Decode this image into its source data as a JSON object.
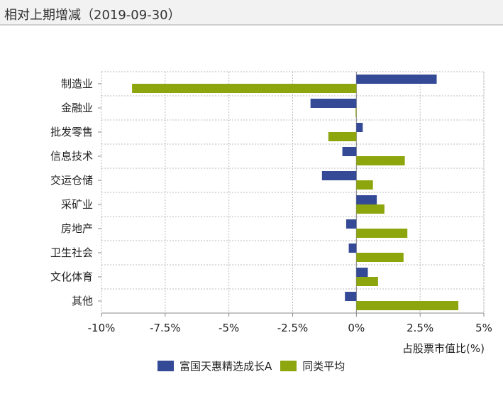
{
  "header": {
    "title": "相对上期增减（2019-09-30）"
  },
  "colors": {
    "fund": "#354a97",
    "average": "#8ea60d",
    "grid": "#bbbbbb",
    "axis": "#888888"
  },
  "chart_data": {
    "type": "bar",
    "orientation": "horizontal",
    "categories": [
      "制造业",
      "金融业",
      "批发零售",
      "信息技术",
      "交运仓储",
      "采矿业",
      "房地产",
      "卫生社会",
      "文化体育",
      "其他"
    ],
    "series": [
      {
        "name": "富国天惠精选成长A",
        "values": [
          3.15,
          -1.8,
          0.25,
          -0.55,
          -1.35,
          0.8,
          -0.4,
          -0.3,
          0.45,
          -0.45
        ]
      },
      {
        "name": "同类平均",
        "values": [
          -8.8,
          -0.03,
          -1.1,
          1.9,
          0.65,
          1.1,
          2.0,
          1.85,
          0.85,
          4.0
        ]
      }
    ],
    "xlim": [
      -10,
      5
    ],
    "ticks": [
      -10,
      -7.5,
      -5,
      -2.5,
      0,
      2.5,
      5
    ],
    "tick_labels": [
      "-10%",
      "-7.5%",
      "-5%",
      "-2.5%",
      "0%",
      "2.5%",
      "5%"
    ],
    "xlabel": "占股票市值比(%)",
    "grid": true,
    "legend_position": "bottom"
  }
}
